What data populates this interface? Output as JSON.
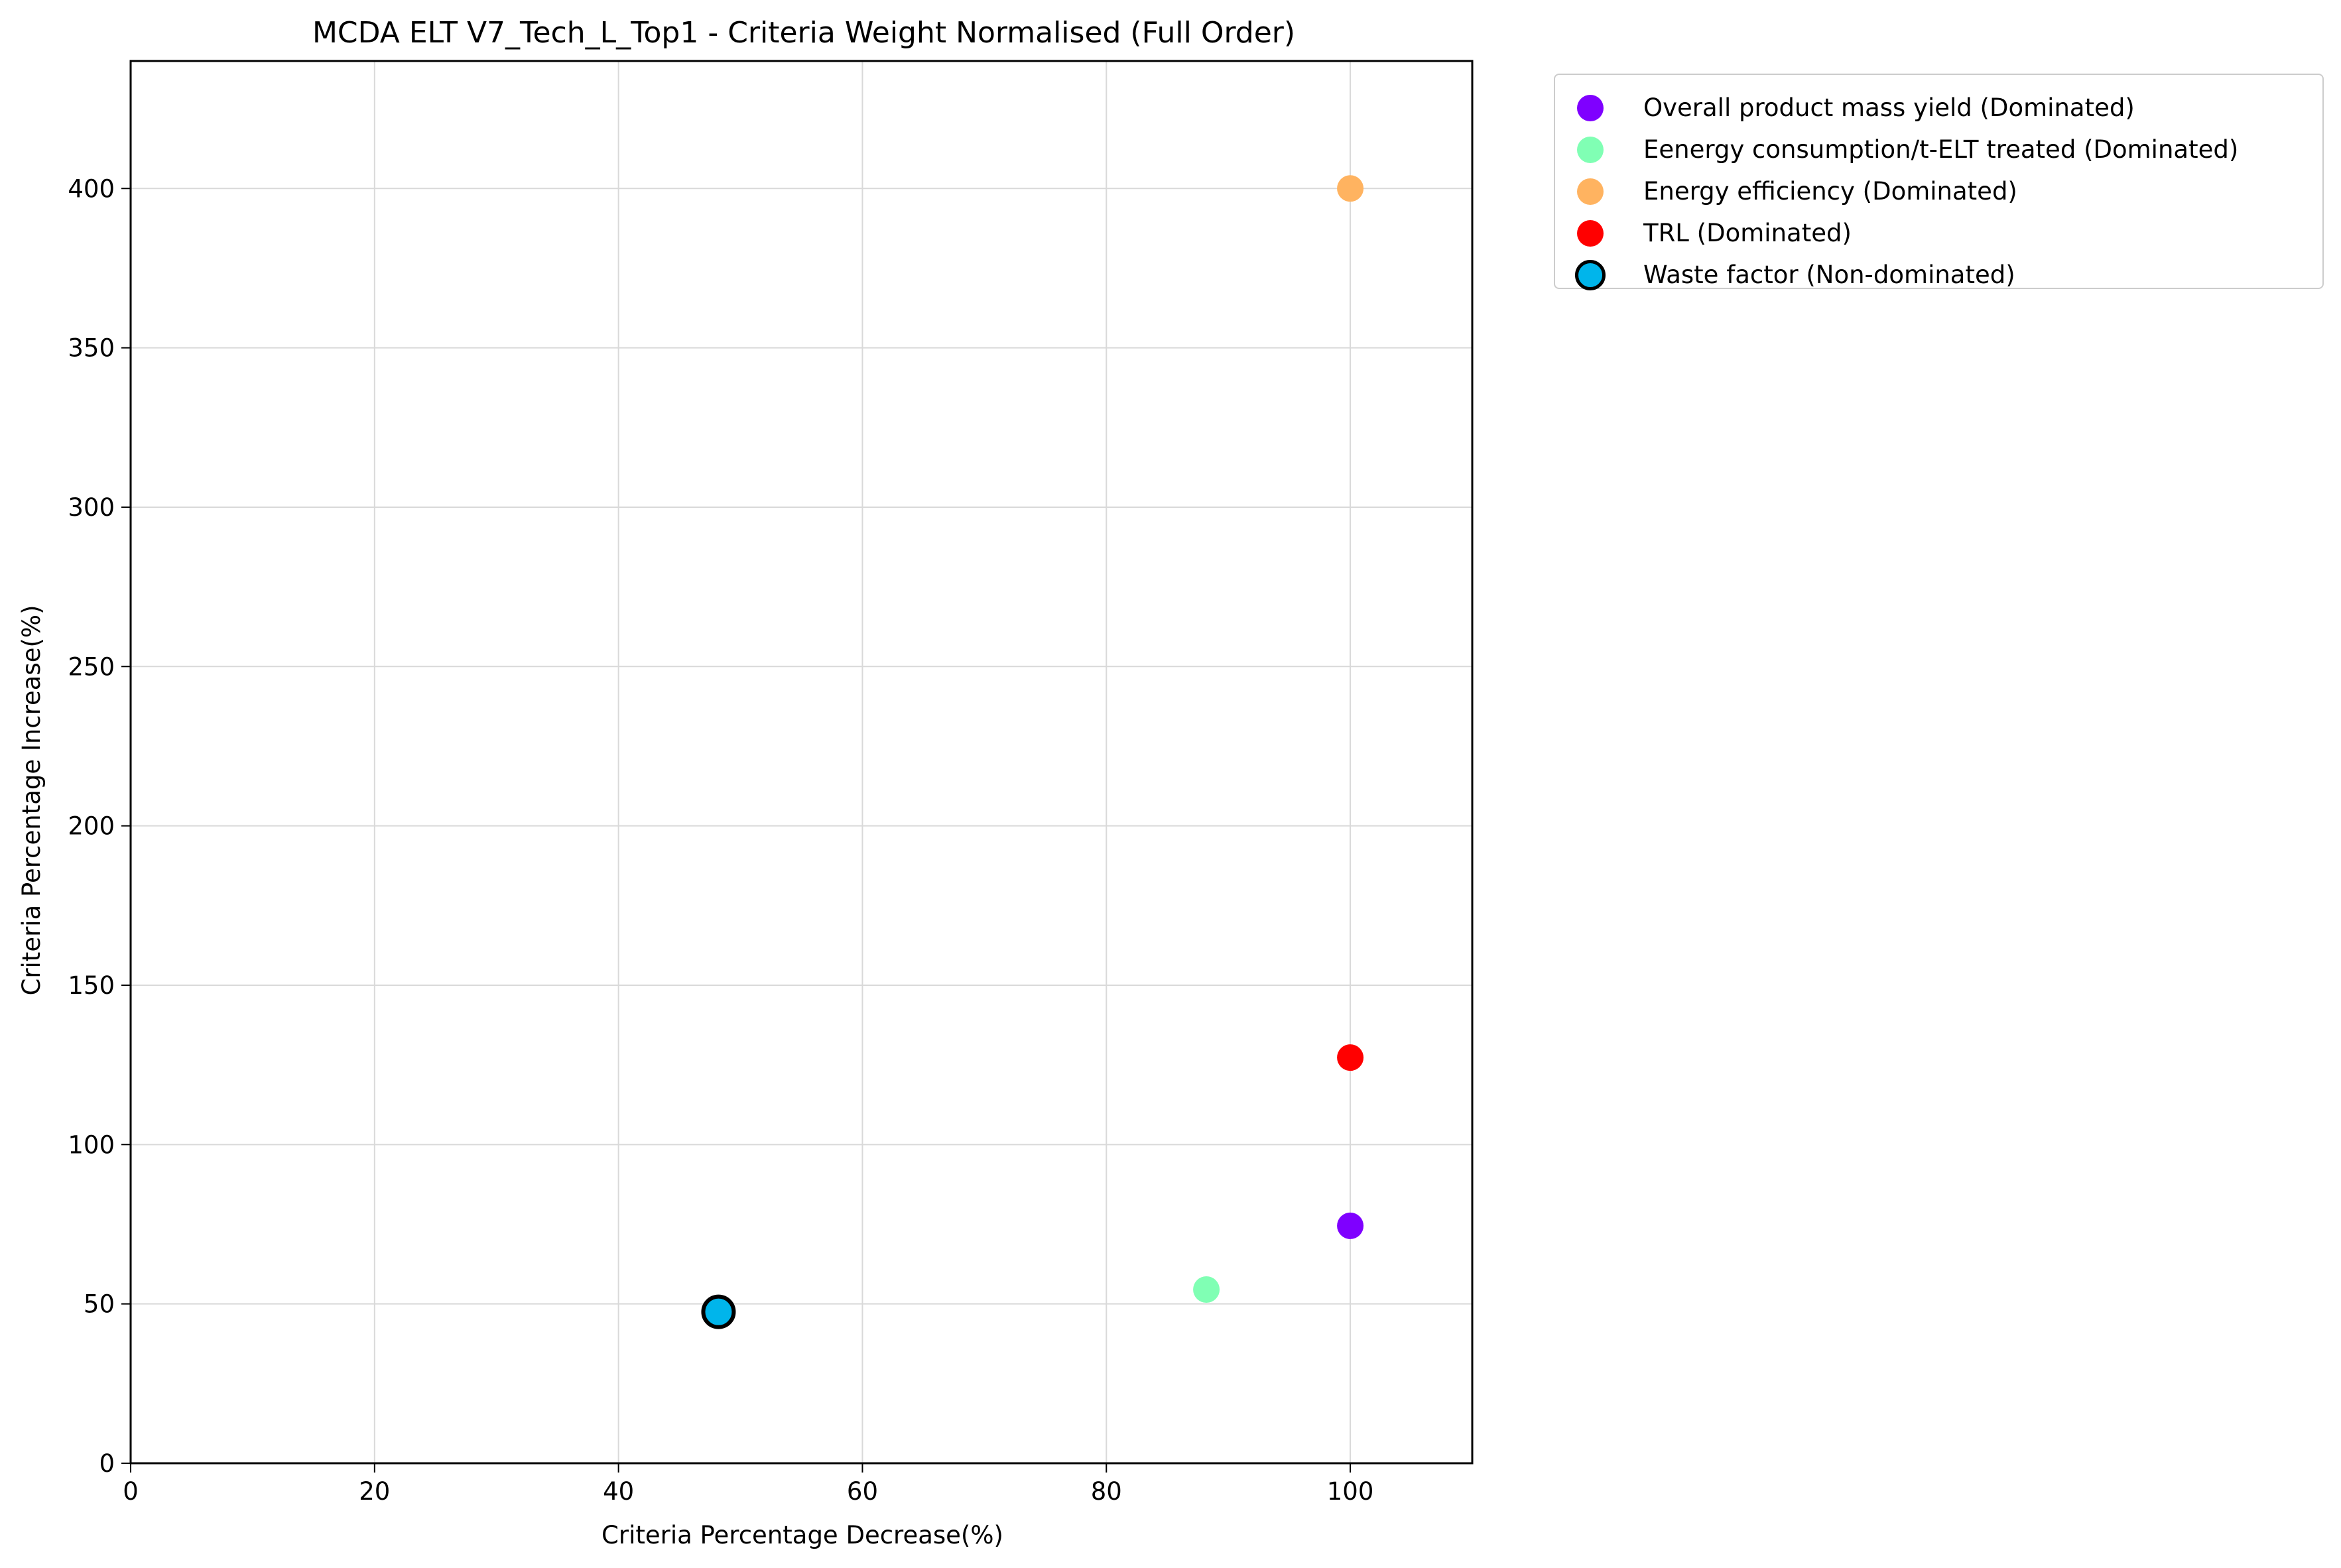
{
  "chart_data": {
    "type": "scatter",
    "title": "MCDA ELT V7_Tech_L_Top1 - Criteria Weight Normalised (Full Order)",
    "xlabel": "Criteria Percentage Decrease(%)",
    "ylabel": "Criteria Percentage Increase(%)",
    "xlim": [
      0,
      110
    ],
    "ylim": [
      0,
      440
    ],
    "xticks": [
      0,
      20,
      40,
      60,
      80,
      100
    ],
    "yticks": [
      0,
      50,
      100,
      150,
      200,
      250,
      300,
      350,
      400
    ],
    "grid": true,
    "legend_position": "outside-top-right",
    "series": [
      {
        "name": "Overall product mass yield (Dominated)",
        "color": "#7f00ff",
        "x": 100,
        "y": 74.5,
        "highlight": false
      },
      {
        "name": "Eenergy consumption/t-ELT treated (Dominated)",
        "color": "#80ffb4",
        "x": 88.2,
        "y": 54.5,
        "highlight": false
      },
      {
        "name": "Energy efficiency (Dominated)",
        "color": "#ffb360",
        "x": 100,
        "y": 400,
        "highlight": false
      },
      {
        "name": "TRL (Dominated)",
        "color": "#ff0000",
        "x": 100,
        "y": 127.3,
        "highlight": false
      },
      {
        "name": "Waste factor (Non-dominated)",
        "color": "#00b5eb",
        "x": 48.2,
        "y": 47.5,
        "highlight": true
      }
    ]
  }
}
